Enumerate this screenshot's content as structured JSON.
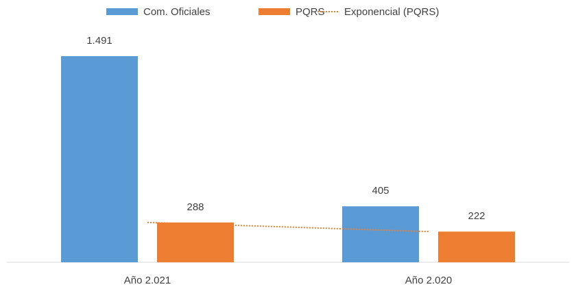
{
  "chart_data": {
    "type": "bar",
    "categories": [
      "Año 2.021",
      "Año 2.020"
    ],
    "series": [
      {
        "name": "Com. Oficiales",
        "color": "#5b9bd5",
        "values": [
          1491,
          405
        ],
        "value_labels": [
          "1.491",
          "405"
        ]
      },
      {
        "name": "PQRS",
        "color": "#ed7d31",
        "values": [
          288,
          222
        ],
        "value_labels": [
          "288",
          "222"
        ]
      }
    ],
    "trendline": {
      "name": "Exponencial (PQRS)",
      "series": 1,
      "type": "exponential",
      "color": "#ed7d31",
      "style": "dotted"
    },
    "ylim": [
      0,
      1600
    ],
    "legend": "top"
  }
}
